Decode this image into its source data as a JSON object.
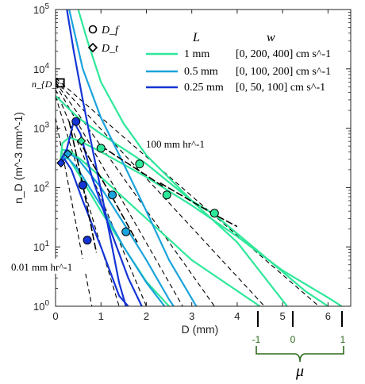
{
  "chart_data": {
    "type": "line",
    "xlabel": "D (mm)",
    "ylabel": "n_D (m^-3 mm^-1)",
    "xlim": [
      0,
      6.5
    ],
    "ylim": [
      1,
      100000
    ],
    "yscale": "log",
    "x_ticks": [
      "0",
      "1",
      "2",
      "3",
      "4",
      "5",
      "6"
    ],
    "y_ticks": [
      "10^0",
      "10^1",
      "10^2",
      "10^3",
      "10^4",
      "10^5"
    ],
    "grid": false,
    "marker_legend": [
      {
        "marker": "circle",
        "label": "D_f"
      },
      {
        "marker": "diamond",
        "label": "D_t"
      }
    ],
    "legend_headers": {
      "L": "L",
      "w": "w"
    },
    "legend": [
      {
        "color": "#2ee89a",
        "L": "1 mm",
        "w": "[0, 200, 400] cm s^-1"
      },
      {
        "color": "#1aa3dc",
        "L": "0.5 mm",
        "w": "[0, 100, 200] cm s^-1"
      },
      {
        "color": "#1535d6",
        "L": "0.25 mm",
        "w": "[0, 50, 100] cm s^-1"
      }
    ],
    "annotations": {
      "n_dc": "n_{D_c}",
      "rate_high": "100 mm hr^-1",
      "rate_low": "0.01 mm hr^-1",
      "mu_label": "μ",
      "mu_ticks": [
        "-1",
        "0",
        "1"
      ]
    },
    "nDc_point": {
      "x": 0.1,
      "y": 5800
    },
    "reference_lines": [
      {
        "name": "0.01 mm/hr",
        "points": [
          [
            0,
            1500
          ],
          [
            0.8,
            1
          ]
        ]
      },
      {
        "name": "ref-2",
        "points": [
          [
            0,
            3500
          ],
          [
            1.4,
            1
          ]
        ]
      },
      {
        "name": "ref-3",
        "points": [
          [
            0,
            4500
          ],
          [
            2.0,
            1
          ]
        ]
      },
      {
        "name": "ref-4",
        "points": [
          [
            0,
            5500
          ],
          [
            2.8,
            1
          ]
        ]
      },
      {
        "name": "ref-5",
        "points": [
          [
            0,
            6000
          ],
          [
            3.5,
            1
          ]
        ]
      },
      {
        "name": "ref-6",
        "points": [
          [
            0,
            6500
          ],
          [
            4.6,
            1
          ]
        ]
      },
      {
        "name": "100 mm/hr",
        "points": [
          [
            0,
            7000
          ],
          [
            5.8,
            1
          ]
        ]
      }
    ],
    "series": [
      {
        "color": "#2ee89a",
        "points": [
          [
            0.1,
            250
          ],
          [
            0.15,
            560
          ],
          [
            0.3,
            700
          ],
          [
            0.55,
            600
          ],
          [
            1.0,
            400
          ],
          [
            2.0,
            150
          ],
          [
            3.0,
            50
          ],
          [
            4.0,
            15
          ],
          [
            5.0,
            4
          ],
          [
            6.0,
            1.4
          ],
          [
            6.3,
            1
          ]
        ]
      },
      {
        "color": "#2ee89a",
        "points": [
          [
            0.1,
            250
          ],
          [
            0.15,
            430
          ],
          [
            0.3,
            420
          ],
          [
            0.55,
            300
          ],
          [
            1.0,
            150
          ],
          [
            2.0,
            30
          ],
          [
            3.0,
            6
          ],
          [
            4.5,
            1
          ]
        ]
      },
      {
        "color": "#2ee89a",
        "points": [
          [
            0.1,
            250
          ],
          [
            0.15,
            330
          ],
          [
            0.3,
            300
          ],
          [
            0.55,
            150
          ],
          [
            1.0,
            40
          ],
          [
            1.5,
            10
          ],
          [
            2.0,
            2.6
          ],
          [
            2.5,
            1
          ]
        ]
      },
      {
        "color": "#2ee89a",
        "points": [
          [
            0.5,
            100000
          ],
          [
            0.7,
            30000
          ],
          [
            1.0,
            6000
          ],
          [
            1.5,
            1200
          ],
          [
            2.0,
            350
          ],
          [
            3.0,
            60
          ],
          [
            4.0,
            12
          ],
          [
            5.1,
            1
          ]
        ]
      },
      {
        "color": "#2ee89a",
        "points": [
          [
            0.0,
            3500
          ],
          [
            0.5,
            1500
          ],
          [
            1.0,
            800
          ],
          [
            2.0,
            250
          ],
          [
            3.0,
            60
          ],
          [
            3.5,
            35
          ],
          [
            4.5,
            8
          ],
          [
            5.5,
            1.8
          ],
          [
            6.0,
            1
          ]
        ]
      },
      {
        "color": "#1aa3dc",
        "points": [
          [
            0.1,
            250
          ],
          [
            0.25,
            400
          ],
          [
            0.5,
            300
          ],
          [
            1.0,
            100
          ],
          [
            1.5,
            25
          ],
          [
            2.0,
            6
          ],
          [
            2.5,
            1.3
          ],
          [
            2.6,
            1
          ]
        ]
      },
      {
        "color": "#1aa3dc",
        "points": [
          [
            0.1,
            250
          ],
          [
            0.25,
            330
          ],
          [
            0.5,
            200
          ],
          [
            1.0,
            50
          ],
          [
            1.5,
            10
          ],
          [
            2.0,
            2.5
          ],
          [
            2.4,
            1
          ]
        ]
      },
      {
        "color": "#1aa3dc",
        "points": [
          [
            0.3,
            100000
          ],
          [
            0.6,
            10000
          ],
          [
            1.0,
            1500
          ],
          [
            1.5,
            250
          ],
          [
            2.0,
            40
          ],
          [
            2.5,
            6
          ],
          [
            3.1,
            1
          ]
        ]
      },
      {
        "color": "#1535d6",
        "points": [
          [
            0.08,
            260
          ],
          [
            0.25,
            450
          ],
          [
            0.4,
            1300
          ],
          [
            0.55,
            800
          ],
          [
            0.8,
            150
          ],
          [
            1.2,
            20
          ],
          [
            1.6,
            3
          ],
          [
            1.9,
            1
          ]
        ]
      },
      {
        "color": "#1535d6",
        "points": [
          [
            0.08,
            260
          ],
          [
            0.2,
            300
          ],
          [
            0.35,
            200
          ],
          [
            0.6,
            60
          ],
          [
            1.0,
            10
          ],
          [
            1.4,
            1.5
          ],
          [
            1.6,
            1
          ]
        ]
      },
      {
        "color": "#1535d6",
        "points": [
          [
            0.25,
            100000
          ],
          [
            0.4,
            20000
          ],
          [
            0.6,
            3000
          ],
          [
            0.8,
            500
          ],
          [
            1.0,
            90
          ],
          [
            1.2,
            15
          ],
          [
            1.4,
            2.5
          ],
          [
            1.55,
            1
          ]
        ]
      }
    ],
    "segments": [
      {
        "points": [
          [
            2.3,
            120
          ],
          [
            3.5,
            35
          ],
          [
            4.0,
            22
          ]
        ]
      },
      {
        "points": [
          [
            1.0,
            500
          ],
          [
            2.0,
            160
          ],
          [
            2.4,
            100
          ]
        ]
      },
      {
        "points": [
          [
            0.5,
            650
          ],
          [
            1.2,
            80
          ],
          [
            1.8,
            12
          ]
        ]
      },
      {
        "points": [
          [
            0.3,
            1300
          ],
          [
            0.6,
            110
          ],
          [
            0.9,
            8
          ]
        ]
      }
    ],
    "circle_markers": [
      {
        "x": 0.45,
        "y": 1300,
        "color": "#1535d6"
      },
      {
        "x": 1.0,
        "y": 460,
        "color": "#2ee89a"
      },
      {
        "x": 1.85,
        "y": 250,
        "color": "#2ee89a"
      },
      {
        "x": 2.45,
        "y": 75,
        "color": "#2ee89a"
      },
      {
        "x": 3.5,
        "y": 37,
        "color": "#2ee89a"
      },
      {
        "x": 1.25,
        "y": 75,
        "color": "#1aa3dc"
      },
      {
        "x": 1.55,
        "y": 18,
        "color": "#1aa3dc"
      },
      {
        "x": 0.6,
        "y": 110,
        "color": "#1535d6"
      },
      {
        "x": 0.7,
        "y": 13,
        "color": "#1535d6"
      }
    ],
    "diamond_markers": [
      {
        "x": 0.57,
        "y": 610,
        "color": "#2ee89a"
      },
      {
        "x": 0.27,
        "y": 370,
        "color": "#1aa3dc"
      },
      {
        "x": 0.12,
        "y": 260,
        "color": "#1535d6"
      }
    ]
  }
}
